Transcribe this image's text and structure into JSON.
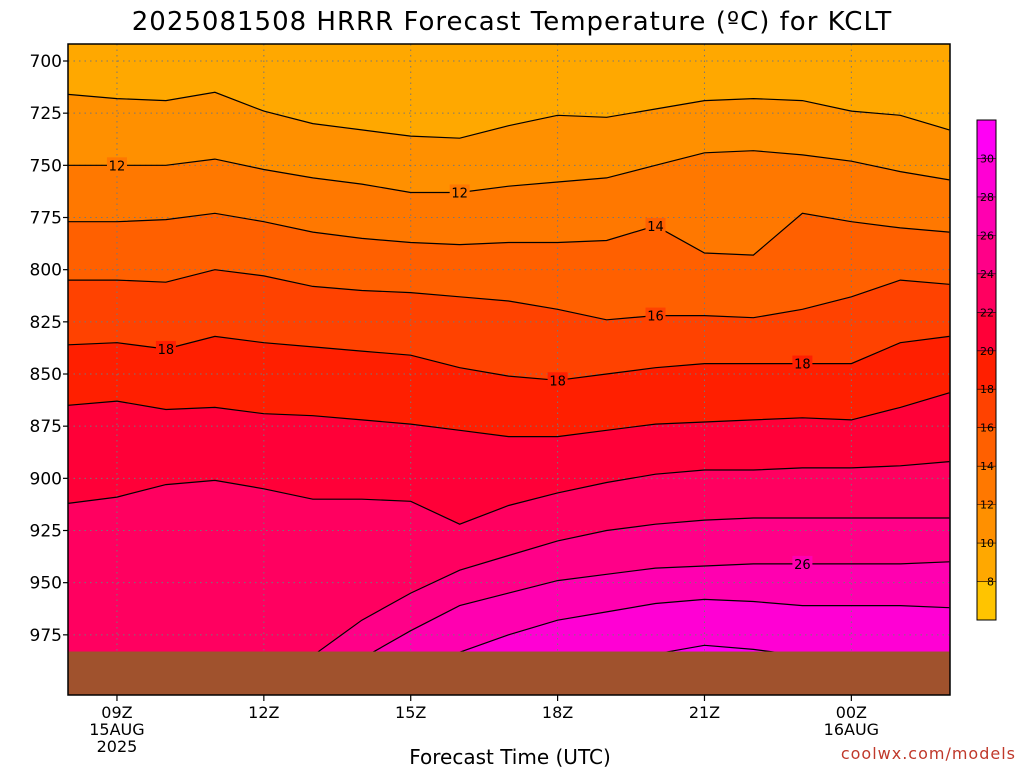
{
  "chart_data": {
    "type": "contour",
    "title": "2025081508 HRRR Forecast Temperature (ºC) for KCLT",
    "xlabel": "Forecast Time (UTC)",
    "ylabel": "",
    "x_ticks": [
      {
        "hour": 9,
        "lines": [
          "09Z",
          "15AUG",
          "2025"
        ]
      },
      {
        "hour": 12,
        "lines": [
          "12Z"
        ]
      },
      {
        "hour": 15,
        "lines": [
          "15Z"
        ]
      },
      {
        "hour": 18,
        "lines": [
          "18Z"
        ]
      },
      {
        "hour": 21,
        "lines": [
          "21Z"
        ]
      },
      {
        "hour": 24,
        "lines": [
          "00Z",
          "16AUG"
        ]
      }
    ],
    "xlim": [
      8,
      26
    ],
    "y_ticks": [
      700,
      725,
      750,
      775,
      800,
      825,
      850,
      875,
      900,
      925,
      950,
      975
    ],
    "ylim": [
      692,
      988
    ],
    "surface_pressure_hpa": 983,
    "grid": true,
    "fill_levels": [
      8,
      10,
      12,
      14,
      16,
      18,
      20,
      22,
      24,
      26,
      28,
      30
    ],
    "fill_colors": [
      "#ffc400",
      "#ffa800",
      "#ff9000",
      "#ff7800",
      "#ff6000",
      "#ff4200",
      "#ff1f00",
      "#ff0038",
      "#ff0060",
      "#ff0088",
      "#ff00b0",
      "#ff00d4",
      "#ff00f5"
    ],
    "contours": [
      {
        "level": 10,
        "hours": [
          8,
          9,
          10,
          11,
          12,
          13,
          14,
          15,
          16,
          17,
          18,
          19,
          20,
          21,
          22,
          23,
          24,
          25,
          26
        ],
        "pressure": [
          716,
          718,
          719,
          715,
          724,
          730,
          733,
          736,
          737,
          731,
          726,
          727,
          723,
          719,
          718,
          719,
          724,
          726,
          733
        ]
      },
      {
        "level": 12,
        "hours": [
          8,
          9,
          10,
          11,
          12,
          13,
          14,
          15,
          16,
          17,
          18,
          19,
          20,
          21,
          22,
          23,
          24,
          25,
          26
        ],
        "pressure": [
          750,
          750,
          750,
          747,
          752,
          756,
          759,
          763,
          763,
          760,
          758,
          756,
          750,
          744,
          743,
          745,
          748,
          753,
          757
        ]
      },
      {
        "level": 14,
        "hours": [
          8,
          9,
          10,
          11,
          12,
          13,
          14,
          15,
          16,
          17,
          18,
          19,
          20,
          21,
          22,
          23,
          24,
          25,
          26
        ],
        "pressure": [
          777,
          777,
          776,
          773,
          777,
          782,
          785,
          787,
          788,
          787,
          787,
          786,
          779,
          792,
          793,
          773,
          777,
          780,
          782
        ]
      },
      {
        "level": 16,
        "hours": [
          8,
          9,
          10,
          11,
          12,
          13,
          14,
          15,
          16,
          17,
          18,
          19,
          20,
          21,
          22,
          23,
          24,
          25,
          26
        ],
        "pressure": [
          805,
          805,
          806,
          800,
          803,
          808,
          810,
          811,
          813,
          815,
          819,
          824,
          822,
          822,
          823,
          819,
          813,
          805,
          807
        ]
      },
      {
        "level": 18,
        "hours": [
          8,
          9,
          10,
          11,
          12,
          13,
          14,
          15,
          16,
          17,
          18,
          19,
          20,
          21,
          22,
          23,
          24,
          25,
          26
        ],
        "pressure": [
          836,
          835,
          838,
          832,
          835,
          837,
          839,
          841,
          847,
          851,
          853,
          850,
          847,
          845,
          845,
          845,
          845,
          835,
          832
        ]
      },
      {
        "level": 20,
        "hours": [
          8,
          9,
          10,
          11,
          12,
          13,
          14,
          15,
          16,
          17,
          18,
          19,
          20,
          21,
          22,
          23,
          24,
          25,
          26
        ],
        "pressure": [
          865,
          863,
          867,
          866,
          869,
          870,
          872,
          874,
          877,
          880,
          880,
          877,
          874,
          873,
          872,
          871,
          872,
          866,
          859
        ]
      },
      {
        "level": 22,
        "hours": [
          8,
          9,
          10,
          11,
          12,
          13,
          14,
          15,
          16,
          17,
          18,
          19,
          20,
          21,
          22,
          23,
          24,
          25,
          26
        ],
        "pressure": [
          912,
          909,
          903,
          901,
          905,
          910,
          910,
          911,
          922,
          913,
          907,
          902,
          898,
          896,
          896,
          895,
          895,
          894,
          892
        ]
      },
      {
        "level": 24,
        "hours": [
          13,
          14,
          15,
          16,
          17,
          18,
          19,
          20,
          21,
          22,
          23,
          24,
          25,
          26
        ],
        "pressure": [
          985,
          968,
          955,
          944,
          937,
          930,
          925,
          922,
          920,
          919,
          919,
          919,
          919,
          919
        ]
      },
      {
        "level": 26,
        "hours": [
          14.1,
          15,
          16,
          17,
          18,
          19,
          20,
          21,
          22,
          23,
          24,
          25,
          26
        ],
        "pressure": [
          985,
          973,
          961,
          955,
          949,
          946,
          943,
          942,
          941,
          941,
          941,
          941,
          940
        ]
      },
      {
        "level": 28,
        "hours": [
          15.8,
          17,
          18,
          19,
          20,
          21,
          22,
          23,
          24,
          25,
          26
        ],
        "pressure": [
          985,
          975,
          968,
          964,
          960,
          958,
          959,
          961,
          961,
          961,
          962
        ]
      },
      {
        "level": 30,
        "hours": [
          19.8,
          21,
          22,
          23
        ],
        "pressure": [
          985,
          980,
          982,
          985
        ]
      }
    ],
    "contour_labels": [
      {
        "text": "12",
        "hour": 9.0,
        "pressure": 750
      },
      {
        "text": "12",
        "hour": 16.0,
        "pressure": 763
      },
      {
        "text": "14",
        "hour": 20.0,
        "pressure": 779
      },
      {
        "text": "16",
        "hour": 20.0,
        "pressure": 822
      },
      {
        "text": "18",
        "hour": 10.0,
        "pressure": 838
      },
      {
        "text": "18",
        "hour": 18.0,
        "pressure": 853
      },
      {
        "text": "18",
        "hour": 23.0,
        "pressure": 845
      },
      {
        "text": "26",
        "hour": 23.0,
        "pressure": 941
      }
    ],
    "colorbar_labels": [
      "8",
      "10",
      "12",
      "14",
      "16",
      "18",
      "20",
      "22",
      "24",
      "26",
      "28",
      "30"
    ]
  },
  "credit": "coolwx.com/models",
  "colors": {
    "ground": "#a0522d",
    "contour": "#000000",
    "grid": "#777777",
    "credit": "#c0392b"
  }
}
